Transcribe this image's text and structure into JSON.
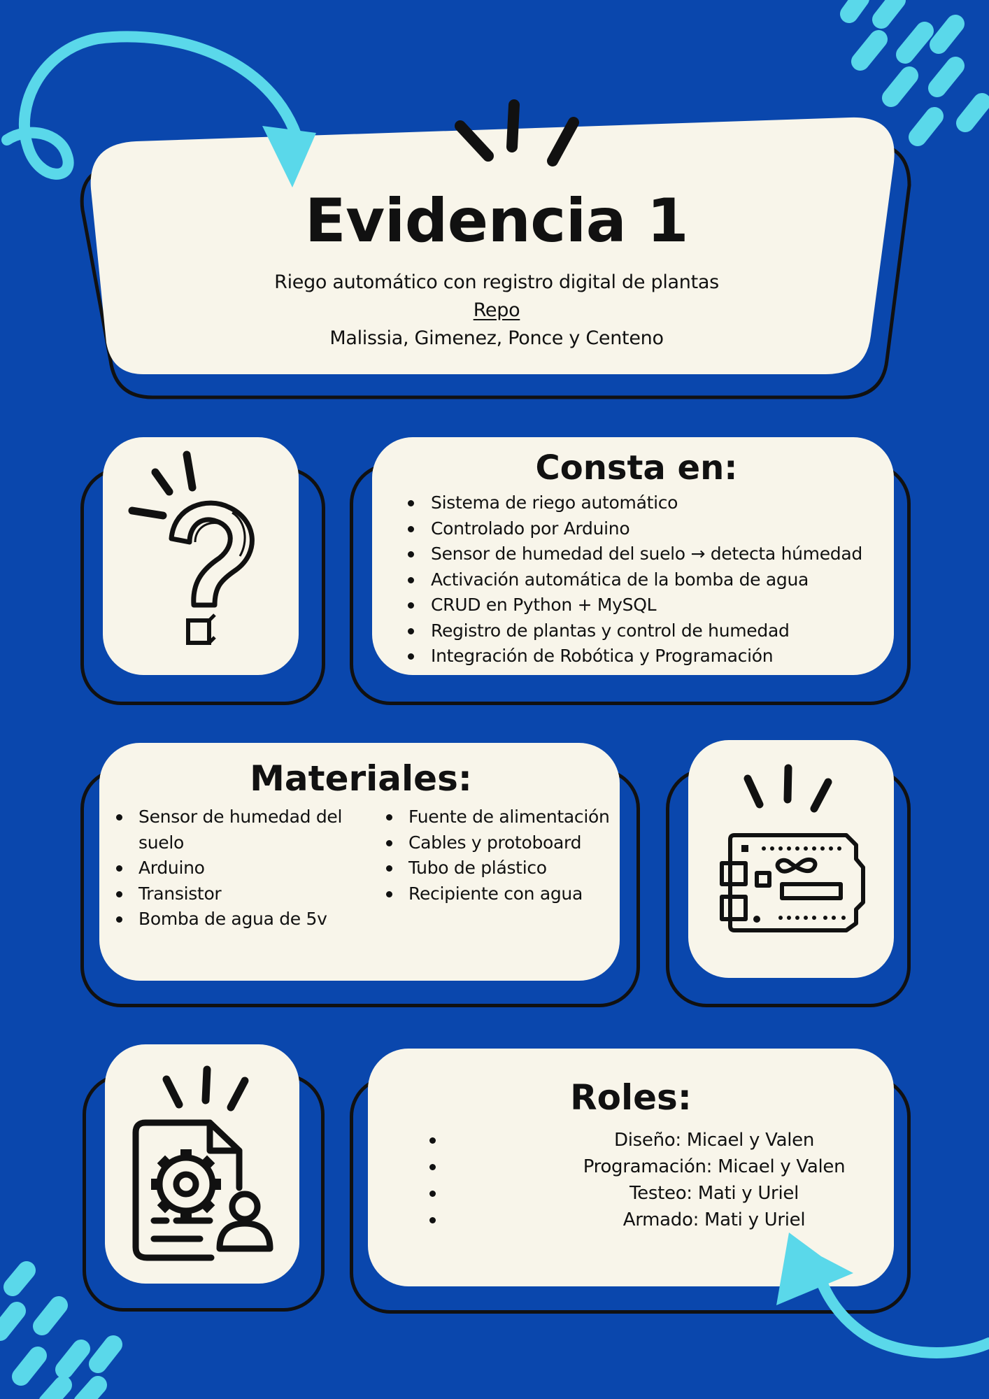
{
  "header": {
    "title": "Evidencia 1",
    "subtitle": "Riego automático con registro digital de plantas",
    "repo_link": "Repo",
    "authors": "Malissia, Gimenez, Ponce y Centeno"
  },
  "consta": {
    "title": "Consta en:",
    "items": [
      "Sistema de riego automático",
      "Controlado por Arduino",
      "Sensor de humedad del suelo → detecta húmedad",
      "Activación automática de la bomba de agua",
      "CRUD en Python + MySQL",
      "Registro de plantas y control de humedad",
      "Integración de Robótica y Programación"
    ]
  },
  "materiales": {
    "title": "Materiales:",
    "left_items": [
      "Sensor de humedad del suelo",
      "Arduino",
      "Transistor",
      "Bomba de agua de 5v"
    ],
    "right_items": [
      "Fuente de alimentación",
      "Cables y protoboard",
      "Tubo de plástico",
      "Recipiente con agua"
    ]
  },
  "roles": {
    "title": "Roles:",
    "items": [
      "Diseño: Micael y Valen",
      "Programación: Micael y Valen",
      "Testeo: Mati y Uriel",
      "Armado: Mati y Uriel"
    ]
  },
  "icons": [
    "question-mark-icon",
    "arduino-board-icon",
    "document-gear-user-icon",
    "curved-arrow-icon",
    "dash-pattern-decoration"
  ],
  "colors": {
    "background": "#0a47ad",
    "card": "#f8f5ea",
    "accent": "#5ad8ea",
    "ink": "#111111"
  }
}
